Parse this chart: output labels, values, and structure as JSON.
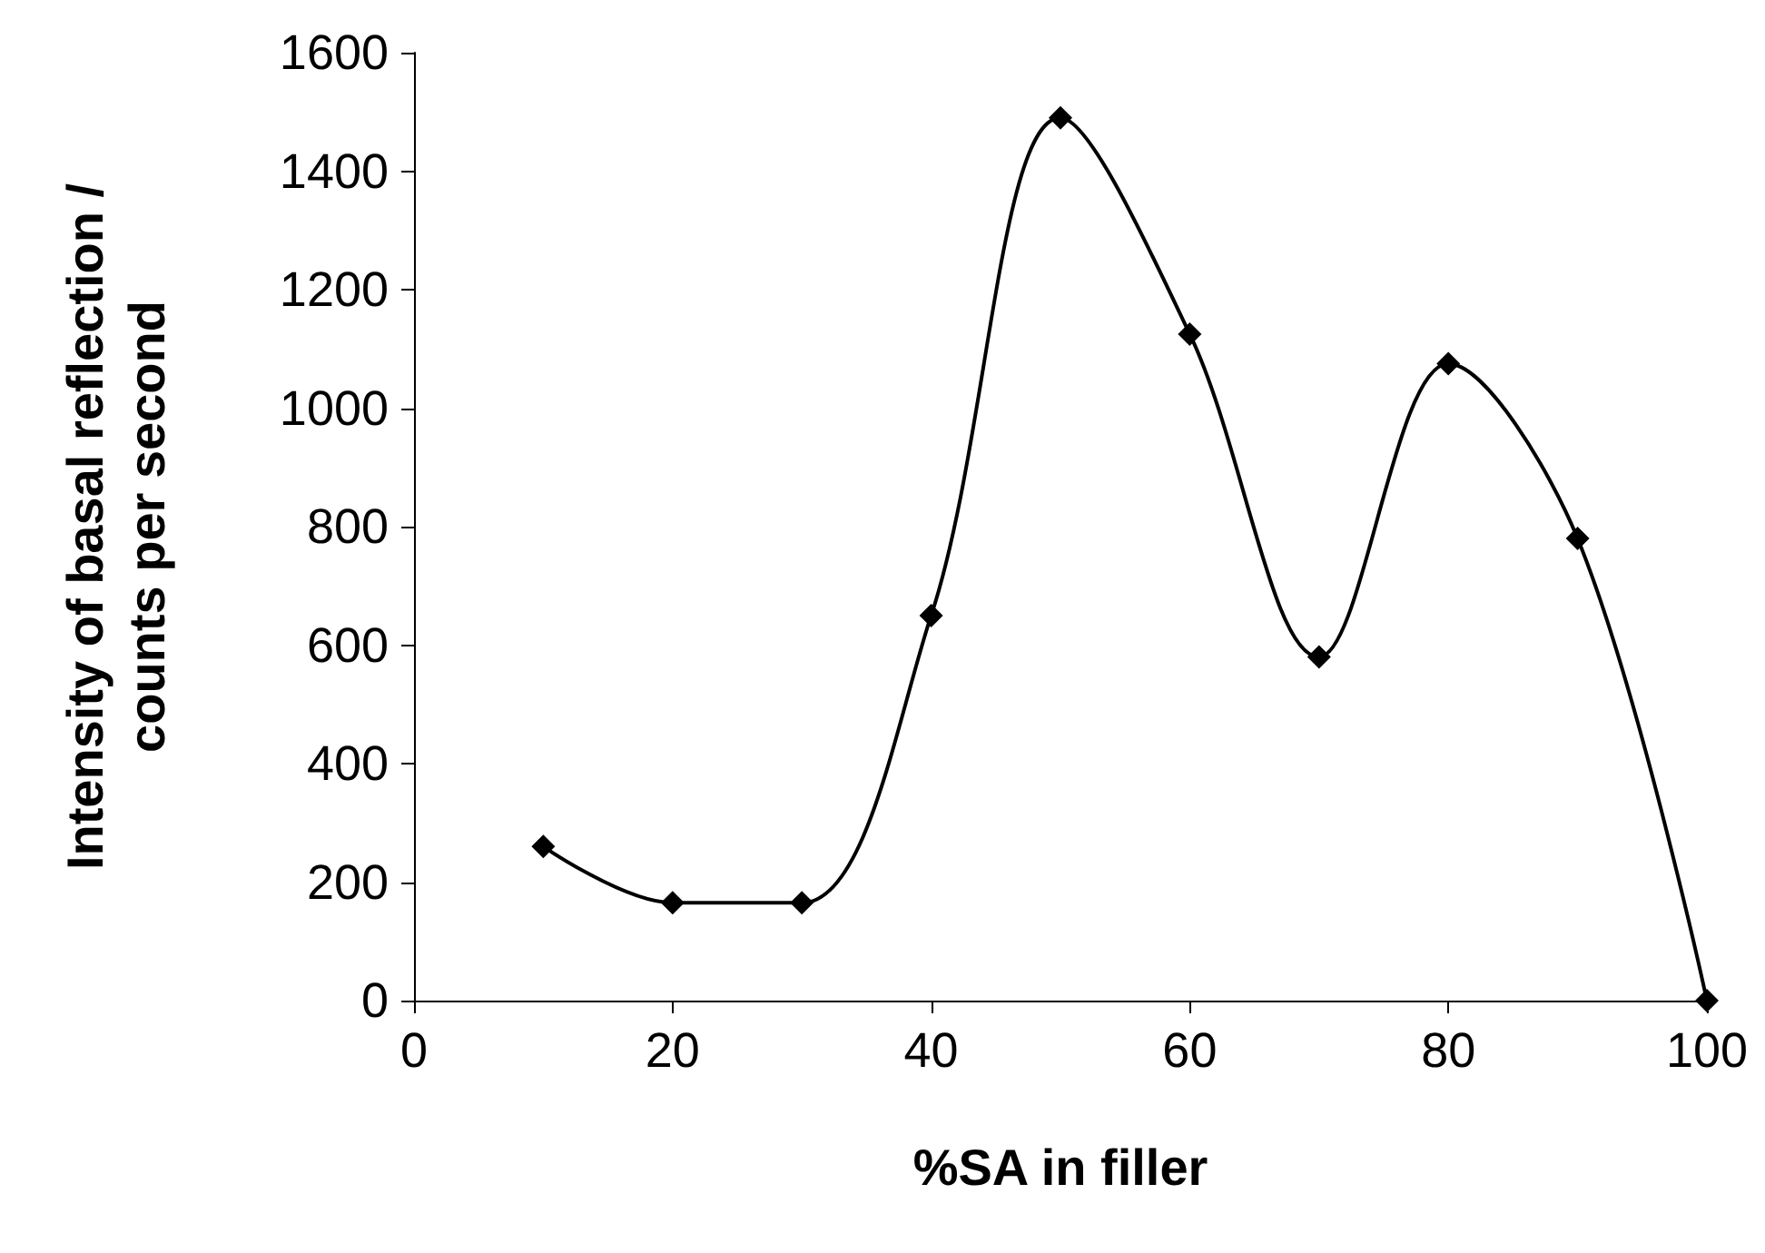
{
  "chart_data": {
    "type": "line",
    "xlabel": "%SA in filler",
    "ylabel": "Intensity of basal reflection /\ncounts per second",
    "x": [
      10,
      20,
      30,
      40,
      50,
      60,
      70,
      80,
      90,
      100
    ],
    "series": [
      {
        "color": "#000000",
        "values": [
          260,
          165,
          165,
          650,
          1490,
          1125,
          580,
          1075,
          780,
          0
        ]
      }
    ],
    "xlim": [
      0,
      100
    ],
    "xticks": [
      0,
      20,
      40,
      60,
      80,
      100
    ],
    "ylim": [
      0,
      1600
    ],
    "yticks": [
      0,
      200,
      400,
      600,
      800,
      1000,
      1200,
      1400,
      1600
    ],
    "marker": "diamond",
    "line_style": "solid"
  }
}
